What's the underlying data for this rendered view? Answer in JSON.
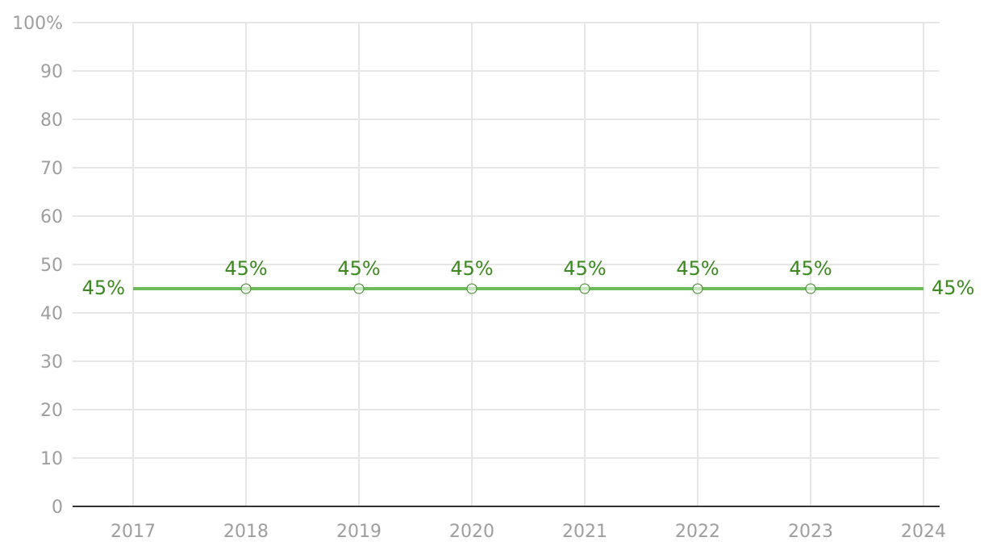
{
  "chart_data": {
    "type": "line",
    "categories": [
      "2017",
      "2018",
      "2019",
      "2020",
      "2021",
      "2022",
      "2023",
      "2024"
    ],
    "series": [
      {
        "color": "#6cbb5a",
        "label_color": "#3b8a1f",
        "values": [
          45,
          45,
          45,
          45,
          45,
          45,
          45,
          45
        ],
        "value_labels": [
          "45%",
          "45%",
          "45%",
          "45%",
          "45%",
          "45%",
          "45%",
          "45%"
        ]
      }
    ],
    "ylim": [
      0,
      100
    ],
    "yticks": [
      0,
      10,
      20,
      30,
      40,
      50,
      60,
      70,
      80,
      90,
      {
        "value": 100,
        "label": "100%"
      }
    ],
    "grid": true
  }
}
